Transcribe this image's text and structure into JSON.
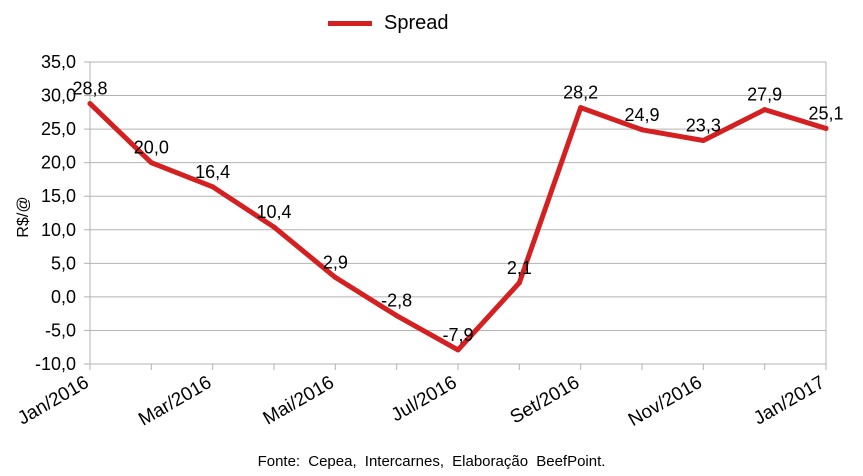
{
  "legend": {
    "label": "Spread"
  },
  "source": "Fonte:  Cepea,  Intercarnes,  Elaboração  BeefPoint.",
  "chart_data": {
    "type": "line",
    "title": "",
    "xlabel": "",
    "ylabel": "R$/@",
    "ylim": [
      -10,
      35
    ],
    "yticks": [
      -10,
      -5,
      0,
      5,
      10,
      15,
      20,
      25,
      30,
      35
    ],
    "ytick_labels": [
      "-10,0",
      "-5,0",
      "0,0",
      "5,0",
      "10,0",
      "15,0",
      "20,0",
      "25,0",
      "30,0",
      "35,0"
    ],
    "x": [
      "Jan/2016",
      "Fev/2016",
      "Mar/2016",
      "Abr/2016",
      "Mai/2016",
      "Jun/2016",
      "Jul/2016",
      "Ago/2016",
      "Set/2016",
      "Out/2016",
      "Nov/2016",
      "Dez/2016",
      "Jan/2017"
    ],
    "xtick_labels_shown": [
      "Jan/2016",
      "Mar/2016",
      "Mai/2016",
      "Jul/2016",
      "Set/2016",
      "Nov/2016",
      "Jan/2017"
    ],
    "series": [
      {
        "name": "Spread",
        "color": "#d42020",
        "values": [
          28.8,
          20.0,
          16.4,
          10.4,
          2.9,
          -2.8,
          -7.9,
          2.1,
          28.2,
          24.9,
          23.3,
          27.9,
          25.1
        ],
        "data_labels": [
          "28,8",
          "20,0",
          "16,4",
          "10,4",
          "2,9",
          "-2,8",
          "-7,9",
          "2,1",
          "28,2",
          "24,9",
          "23,3",
          "27,9",
          "25,1"
        ]
      }
    ],
    "grid": true,
    "legend_position": "top-center"
  }
}
